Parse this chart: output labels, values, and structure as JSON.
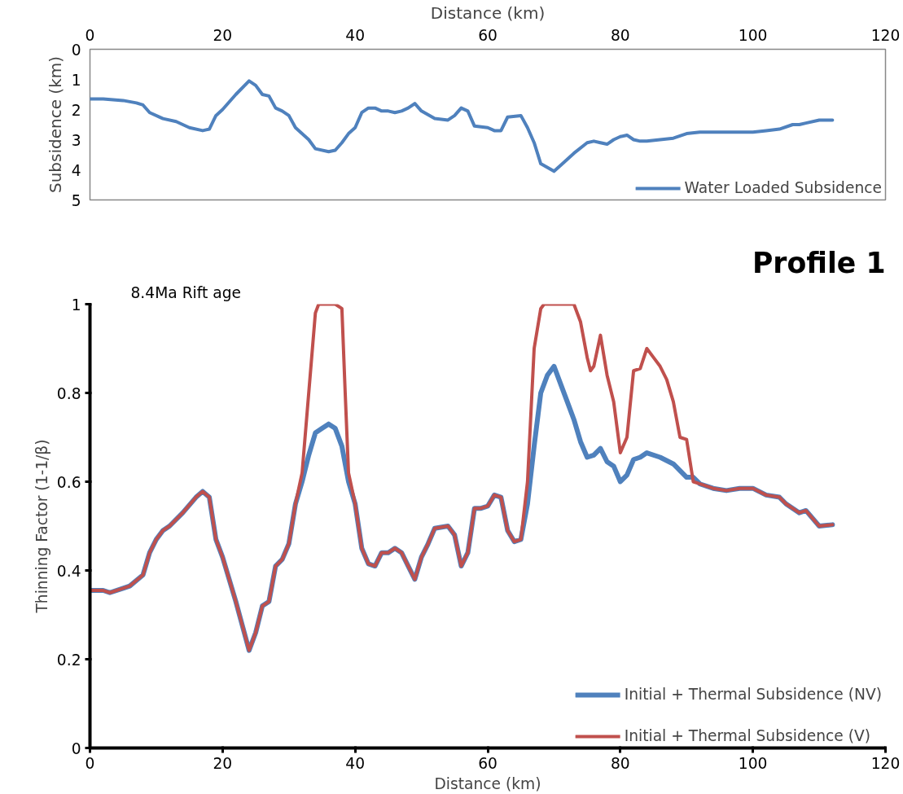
{
  "chart_data": [
    {
      "type": "line",
      "xlabel": "Distance (km)",
      "ylabel": "Subsidence (km)",
      "xlim": [
        0,
        120
      ],
      "xticks": [
        0,
        20,
        40,
        60,
        80,
        100,
        120
      ],
      "ylim": [
        5,
        0
      ],
      "yticks": [
        0,
        1,
        2,
        3,
        4,
        5
      ],
      "grid": false,
      "legend": "bottom right",
      "series": [
        {
          "name": "Water Loaded Subsidence",
          "color": "#4f81bd",
          "x": [
            0,
            2,
            5,
            7,
            8,
            9,
            11,
            13,
            15,
            17,
            18,
            19,
            20,
            22,
            24,
            25,
            26,
            27,
            28,
            29,
            30,
            31,
            33,
            34,
            36,
            37,
            38,
            39,
            40,
            41,
            42,
            43,
            44,
            45,
            46,
            47,
            48,
            49,
            50,
            52,
            54,
            55,
            56,
            57,
            58,
            60,
            61,
            62,
            63,
            65,
            66,
            67,
            68,
            70,
            71,
            73,
            75,
            76,
            77,
            78,
            79,
            80,
            81,
            82,
            83,
            84,
            86,
            88,
            90,
            92,
            95,
            100,
            102,
            104,
            106,
            107,
            108,
            110,
            112
          ],
          "values": [
            1.65,
            1.65,
            1.7,
            1.78,
            1.85,
            2.1,
            2.3,
            2.4,
            2.6,
            2.7,
            2.65,
            2.2,
            2.0,
            1.5,
            1.05,
            1.2,
            1.5,
            1.55,
            1.95,
            2.05,
            2.2,
            2.6,
            3.0,
            3.3,
            3.4,
            3.35,
            3.1,
            2.8,
            2.6,
            2.1,
            1.95,
            1.95,
            2.05,
            2.05,
            2.1,
            2.05,
            1.95,
            1.8,
            2.05,
            2.3,
            2.35,
            2.2,
            1.95,
            2.05,
            2.55,
            2.6,
            2.7,
            2.7,
            2.25,
            2.2,
            2.6,
            3.1,
            3.8,
            4.05,
            3.85,
            3.45,
            3.1,
            3.05,
            3.1,
            3.15,
            3.0,
            2.9,
            2.85,
            3.0,
            3.05,
            3.05,
            3.0,
            2.95,
            2.8,
            2.75,
            2.75,
            2.75,
            2.7,
            2.65,
            2.5,
            2.5,
            2.45,
            2.35,
            2.35
          ]
        }
      ]
    },
    {
      "type": "line",
      "xlabel": "Distance (km)",
      "ylabel": "Thinning Factor (1-1/β)",
      "xlim": [
        0,
        120
      ],
      "xticks": [
        0,
        20,
        40,
        60,
        80,
        100,
        120
      ],
      "ylim": [
        0,
        1
      ],
      "yticks": [
        0,
        0.2,
        0.4,
        0.6,
        0.8,
        1
      ],
      "grid": false,
      "legend": "bottom right",
      "annotations": [
        "8.4Ma Rift age",
        "Profile 1"
      ],
      "series": [
        {
          "name": "Initial + Thermal Subsidence (NV)",
          "color": "#4f81bd",
          "x": [
            0,
            2,
            3,
            5,
            6,
            8,
            9,
            10,
            11,
            12,
            14,
            16,
            17,
            18,
            19,
            20,
            22,
            24,
            25,
            26,
            27,
            28,
            29,
            30,
            31,
            32,
            33,
            34,
            35,
            36,
            37,
            38,
            39,
            40,
            41,
            42,
            43,
            44,
            45,
            46,
            47,
            48,
            49,
            50,
            51,
            52,
            54,
            55,
            56,
            57,
            58,
            59,
            60,
            61,
            62,
            63,
            64,
            65,
            66,
            67,
            68,
            69,
            70,
            71,
            72,
            73,
            74,
            75,
            76,
            77,
            78,
            79,
            80,
            81,
            82,
            83,
            84,
            86,
            88,
            89,
            90,
            91,
            92,
            94,
            96,
            98,
            100,
            102,
            104,
            105,
            107,
            108,
            110,
            112
          ],
          "values": [
            0.355,
            0.355,
            0.35,
            0.36,
            0.365,
            0.39,
            0.44,
            0.47,
            0.49,
            0.5,
            0.53,
            0.565,
            0.578,
            0.565,
            0.47,
            0.43,
            0.33,
            0.22,
            0.26,
            0.32,
            0.33,
            0.41,
            0.425,
            0.46,
            0.55,
            0.6,
            0.66,
            0.71,
            0.72,
            0.73,
            0.72,
            0.68,
            0.6,
            0.55,
            0.45,
            0.415,
            0.41,
            0.44,
            0.44,
            0.45,
            0.44,
            0.41,
            0.38,
            0.43,
            0.46,
            0.495,
            0.5,
            0.48,
            0.41,
            0.44,
            0.54,
            0.54,
            0.545,
            0.57,
            0.565,
            0.49,
            0.465,
            0.47,
            0.55,
            0.68,
            0.8,
            0.84,
            0.86,
            0.82,
            0.78,
            0.74,
            0.69,
            0.655,
            0.66,
            0.675,
            0.645,
            0.635,
            0.6,
            0.615,
            0.65,
            0.655,
            0.665,
            0.655,
            0.64,
            0.625,
            0.61,
            0.61,
            0.595,
            0.585,
            0.58,
            0.585,
            0.585,
            0.57,
            0.565,
            0.55,
            0.53,
            0.535,
            0.5,
            0.503
          ]
        },
        {
          "name": "Initial + Thermal Subsidence (V)",
          "color": "#c0504d",
          "x": [
            0,
            2,
            3,
            5,
            6,
            8,
            9,
            10,
            11,
            12,
            14,
            16,
            17,
            18,
            19,
            20,
            22,
            24,
            25,
            26,
            27,
            28,
            29,
            30,
            31,
            32,
            33,
            34,
            34.5,
            37,
            38,
            38.5,
            39,
            40,
            41,
            42,
            43,
            44,
            45,
            46,
            47,
            48,
            49,
            50,
            51,
            52,
            54,
            55,
            56,
            57,
            58,
            59,
            60,
            61,
            62,
            63,
            64,
            65,
            66,
            67,
            68,
            68.5,
            73,
            74,
            75,
            75.5,
            76,
            77,
            78,
            79,
            80,
            81,
            82,
            83,
            84,
            85,
            86,
            87,
            88,
            89,
            90,
            91,
            92,
            94,
            96,
            98,
            100,
            102,
            104,
            105,
            107,
            108,
            110,
            112
          ],
          "values": [
            0.355,
            0.355,
            0.35,
            0.36,
            0.365,
            0.39,
            0.44,
            0.47,
            0.49,
            0.5,
            0.53,
            0.565,
            0.578,
            0.565,
            0.47,
            0.43,
            0.33,
            0.22,
            0.26,
            0.32,
            0.33,
            0.41,
            0.425,
            0.46,
            0.55,
            0.62,
            0.8,
            0.98,
            1,
            1,
            0.99,
            0.8,
            0.62,
            0.55,
            0.45,
            0.415,
            0.41,
            0.44,
            0.44,
            0.45,
            0.44,
            0.41,
            0.38,
            0.43,
            0.46,
            0.495,
            0.5,
            0.48,
            0.41,
            0.44,
            0.54,
            0.54,
            0.545,
            0.57,
            0.565,
            0.49,
            0.465,
            0.47,
            0.6,
            0.9,
            0.99,
            1,
            1,
            0.96,
            0.88,
            0.85,
            0.86,
            0.93,
            0.84,
            0.78,
            0.665,
            0.7,
            0.85,
            0.855,
            0.9,
            0.88,
            0.86,
            0.83,
            0.78,
            0.7,
            0.695,
            0.6,
            0.595,
            0.585,
            0.58,
            0.585,
            0.585,
            0.57,
            0.565,
            0.55,
            0.53,
            0.535,
            0.5,
            0.503
          ]
        }
      ]
    }
  ]
}
